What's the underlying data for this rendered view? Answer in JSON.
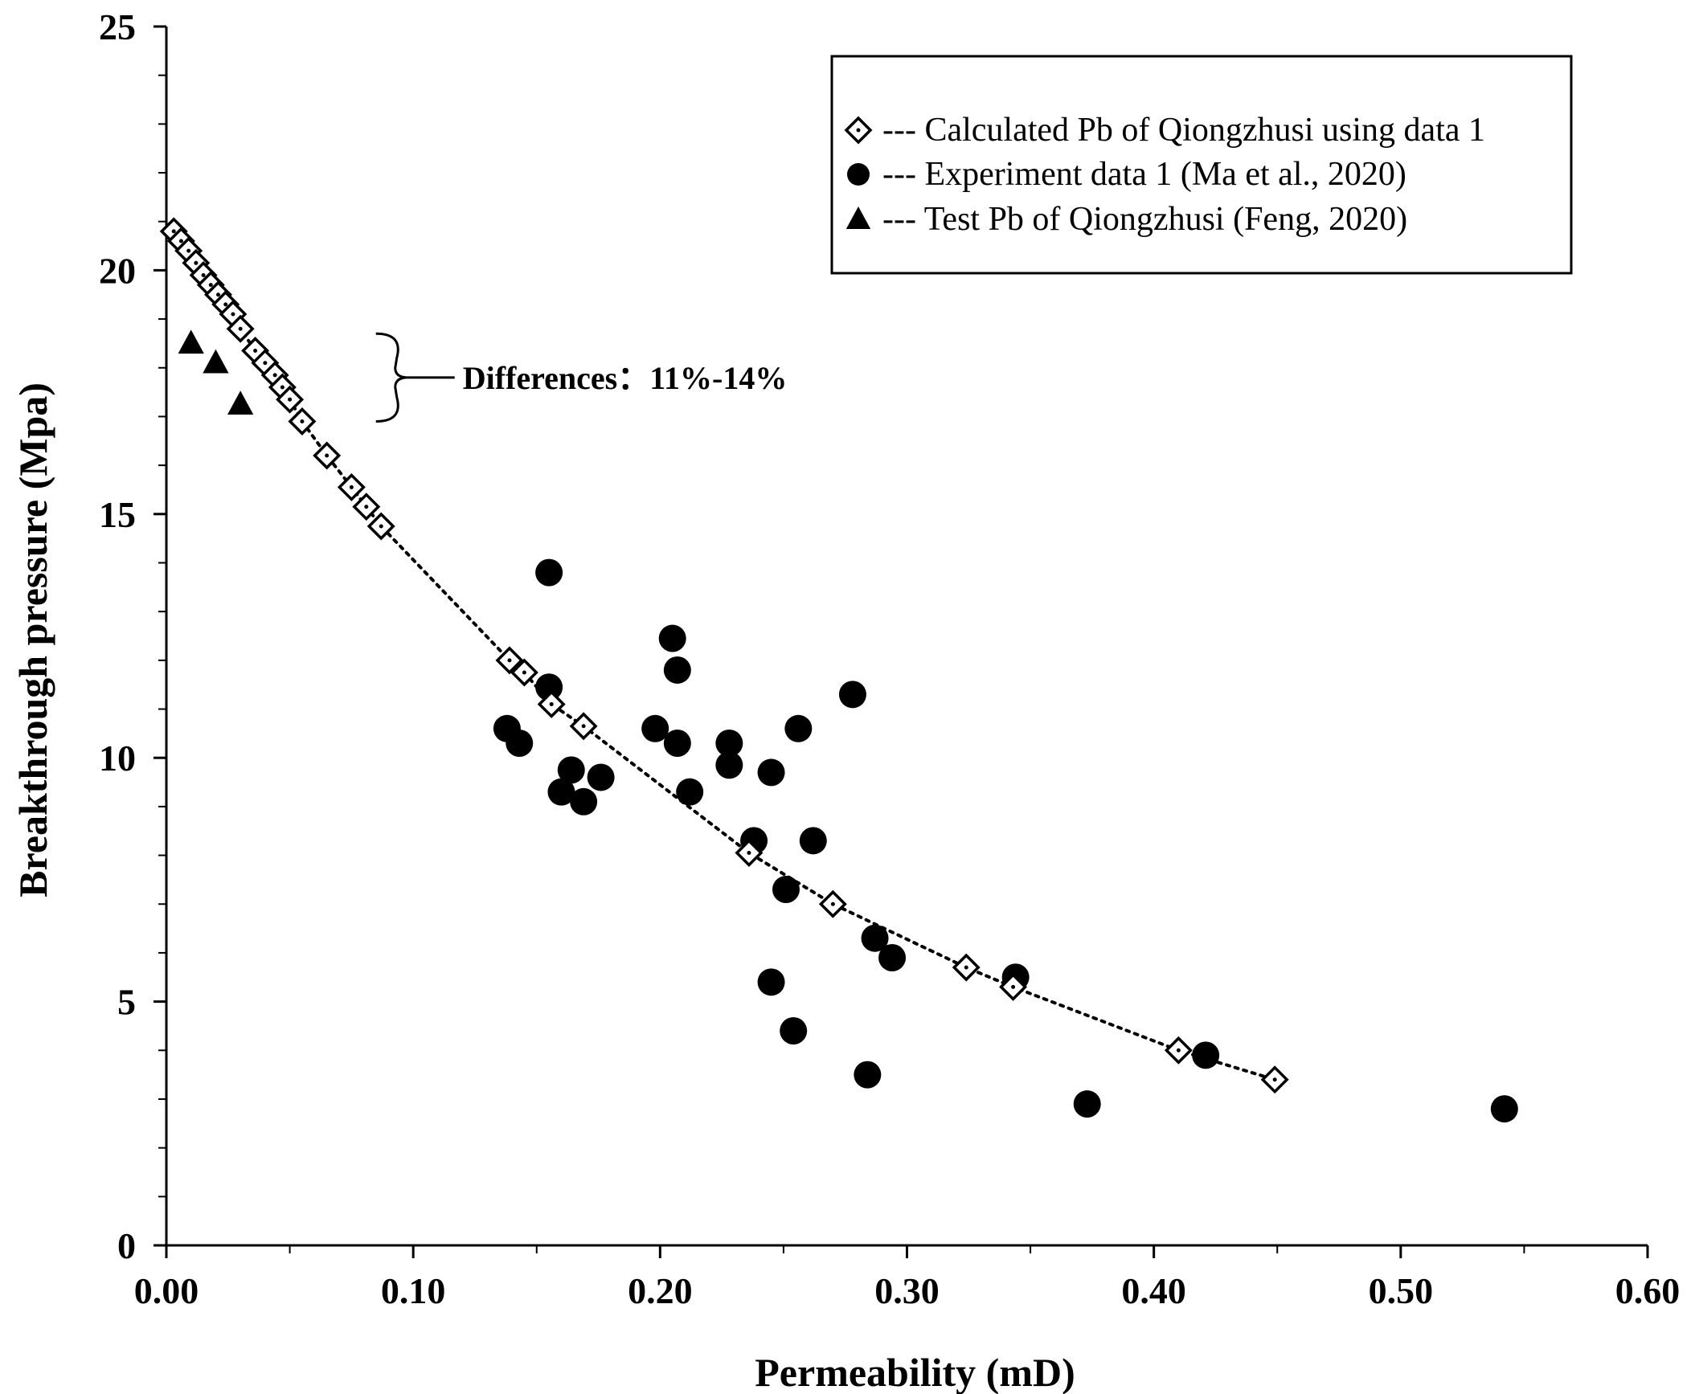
{
  "chart_data": {
    "type": "scatter",
    "xlabel": "Permeability (mD)",
    "ylabel": "Breakthrough pressure (Mpa)",
    "xlim": [
      0,
      0.6
    ],
    "ylim": [
      0,
      25
    ],
    "x_ticks": [
      "0.00",
      "0.10",
      "0.20",
      "0.30",
      "0.40",
      "0.50",
      "0.60"
    ],
    "y_ticks": [
      "0",
      "5",
      "10",
      "15",
      "20",
      "25"
    ],
    "legend_position": "top-right",
    "series": [
      {
        "name": "--- Calculated Pb of Qiongzhusi using data 1",
        "marker": "diamond-open",
        "line": "dotted",
        "points": [
          [
            0.003,
            20.8
          ],
          [
            0.006,
            20.6
          ],
          [
            0.009,
            20.4
          ],
          [
            0.012,
            20.15
          ],
          [
            0.015,
            19.9
          ],
          [
            0.018,
            19.7
          ],
          [
            0.021,
            19.5
          ],
          [
            0.024,
            19.3
          ],
          [
            0.027,
            19.1
          ],
          [
            0.03,
            18.8
          ],
          [
            0.036,
            18.35
          ],
          [
            0.04,
            18.1
          ],
          [
            0.044,
            17.85
          ],
          [
            0.047,
            17.6
          ],
          [
            0.05,
            17.35
          ],
          [
            0.055,
            16.9
          ],
          [
            0.065,
            16.2
          ],
          [
            0.075,
            15.55
          ],
          [
            0.081,
            15.15
          ],
          [
            0.087,
            14.75
          ],
          [
            0.139,
            12.0
          ],
          [
            0.145,
            11.75
          ],
          [
            0.156,
            11.1
          ],
          [
            0.169,
            10.65
          ],
          [
            0.236,
            8.05
          ],
          [
            0.27,
            7.0
          ],
          [
            0.324,
            5.7
          ],
          [
            0.343,
            5.3
          ],
          [
            0.41,
            4.0
          ],
          [
            0.449,
            3.4
          ]
        ]
      },
      {
        "name": "--- Experiment data 1 (Ma et al., 2020)",
        "marker": "circle-filled",
        "points": [
          [
            0.155,
            13.8
          ],
          [
            0.205,
            12.45
          ],
          [
            0.207,
            11.8
          ],
          [
            0.155,
            11.45
          ],
          [
            0.278,
            11.3
          ],
          [
            0.138,
            10.6
          ],
          [
            0.143,
            10.3
          ],
          [
            0.198,
            10.6
          ],
          [
            0.207,
            10.3
          ],
          [
            0.228,
            10.3
          ],
          [
            0.256,
            10.6
          ],
          [
            0.228,
            9.85
          ],
          [
            0.245,
            9.7
          ],
          [
            0.164,
            9.75
          ],
          [
            0.176,
            9.6
          ],
          [
            0.16,
            9.3
          ],
          [
            0.169,
            9.1
          ],
          [
            0.212,
            9.3
          ],
          [
            0.238,
            8.3
          ],
          [
            0.262,
            8.3
          ],
          [
            0.251,
            7.3
          ],
          [
            0.287,
            6.3
          ],
          [
            0.294,
            5.9
          ],
          [
            0.344,
            5.5
          ],
          [
            0.245,
            5.4
          ],
          [
            0.254,
            4.4
          ],
          [
            0.284,
            3.5
          ],
          [
            0.421,
            3.9
          ],
          [
            0.373,
            2.9
          ],
          [
            0.542,
            2.8
          ]
        ]
      },
      {
        "name": "--- Test Pb of Qiongzhusi (Feng, 2020)",
        "marker": "triangle-filled",
        "points": [
          [
            0.01,
            18.5
          ],
          [
            0.02,
            18.1
          ],
          [
            0.03,
            17.25
          ]
        ]
      }
    ],
    "annotations": [
      {
        "text": "Differences：11%-14%",
        "bracket_y_range": [
          16.9,
          18.7
        ],
        "bracket_x": 0.08
      }
    ]
  }
}
